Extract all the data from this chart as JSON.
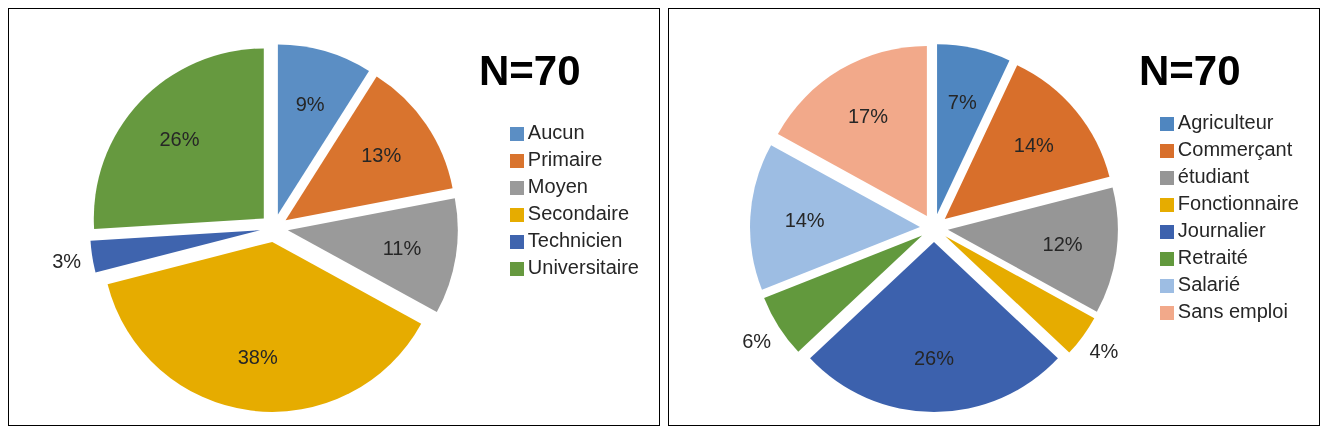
{
  "chart_data": [
    {
      "type": "pie",
      "title": "N=70",
      "categories": [
        "Aucun",
        "Primaire",
        "Moyen",
        "Secondaire",
        "Technicien",
        "Universitaire"
      ],
      "values": [
        9,
        13,
        11,
        38,
        3,
        26
      ],
      "value_labels": [
        "9%",
        "13%",
        "11%",
        "38%",
        "3%",
        "26%"
      ],
      "colors": [
        "#5b8ec4",
        "#d9742e",
        "#9a9a9a",
        "#e6ac00",
        "#3f64ae",
        "#66993f"
      ],
      "legend": "right"
    },
    {
      "type": "pie",
      "title": "N=70",
      "categories": [
        "Agriculteur",
        "Commerçant",
        "étudiant",
        "Fonctionnaire",
        "Journalier",
        "Retraité",
        "Salarié",
        "Sans emploi"
      ],
      "values": [
        7,
        14,
        12,
        4,
        26,
        6,
        14,
        17
      ],
      "value_labels": [
        "7%",
        "14%",
        "12%",
        "4%",
        "26%",
        "6%",
        "14%",
        "17%"
      ],
      "colors": [
        "#4f86c0",
        "#d86f2b",
        "#969696",
        "#e6ac00",
        "#3c61ad",
        "#62993d",
        "#9dbde3",
        "#f2a98a"
      ],
      "legend": "right"
    }
  ]
}
